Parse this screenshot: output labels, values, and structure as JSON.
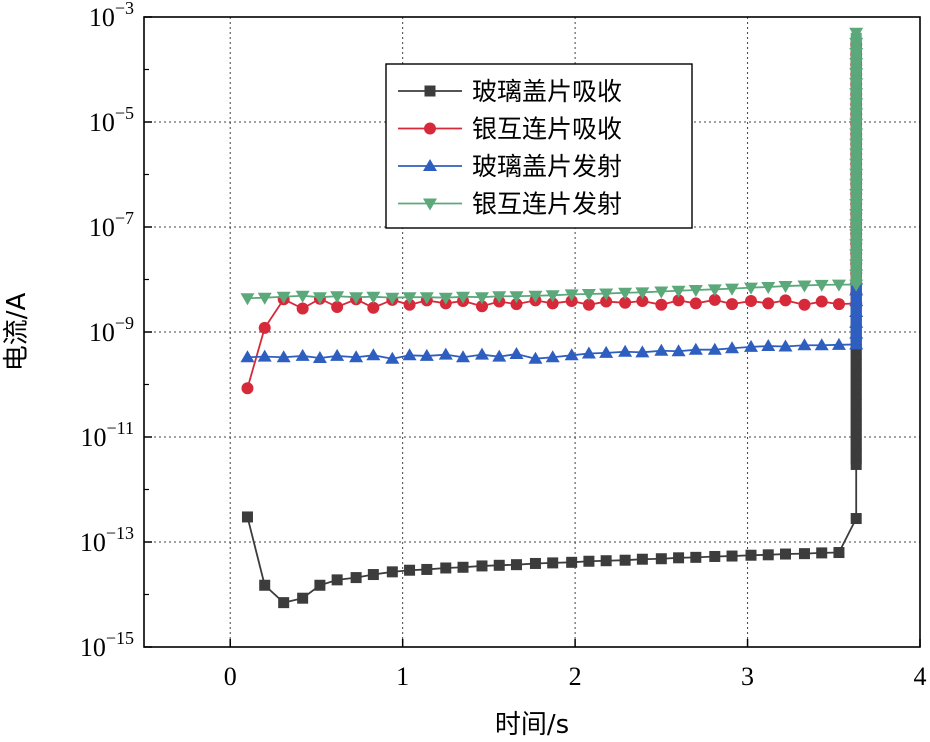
{
  "chart_data": {
    "type": "line",
    "title": "",
    "xlabel": "时间/s",
    "ylabel": "电流/A",
    "xlim": [
      -0.5,
      4
    ],
    "ylim_log10": [
      -15,
      -3
    ],
    "yscale": "log",
    "grid": true,
    "legend_position": "top-center",
    "x_ticks": [
      0,
      1,
      2,
      3,
      4
    ],
    "x_tick_labels": [
      "0",
      "1",
      "2",
      "3",
      "4"
    ],
    "y_tick_exponents": [
      -15,
      -13,
      -11,
      -9,
      -7,
      -5,
      -3
    ],
    "y_tick_base": "10",
    "y_tick_exps": [
      "−15",
      "−13",
      "−11",
      "−9",
      "−7",
      "−5",
      "−3"
    ],
    "series": [
      {
        "name": "玻璃盖片吸收",
        "color": "#3c3c3c",
        "marker": "square",
        "points": [
          [
            0.1,
            3e-13
          ],
          [
            0.2,
            1.5e-14
          ],
          [
            0.31,
            7e-15
          ],
          [
            0.42,
            8.5e-15
          ],
          [
            0.52,
            1.5e-14
          ],
          [
            0.62,
            1.9e-14
          ],
          [
            0.73,
            2.1e-14
          ],
          [
            0.83,
            2.4e-14
          ],
          [
            0.94,
            2.7e-14
          ],
          [
            1.04,
            2.9e-14
          ],
          [
            1.14,
            3e-14
          ],
          [
            1.25,
            3.2e-14
          ],
          [
            1.35,
            3.3e-14
          ],
          [
            1.46,
            3.5e-14
          ],
          [
            1.56,
            3.6e-14
          ],
          [
            1.66,
            3.7e-14
          ],
          [
            1.77,
            3.9e-14
          ],
          [
            1.87,
            4e-14
          ],
          [
            1.98,
            4.1e-14
          ],
          [
            2.08,
            4.3e-14
          ],
          [
            2.18,
            4.4e-14
          ],
          [
            2.29,
            4.5e-14
          ],
          [
            2.39,
            4.7e-14
          ],
          [
            2.5,
            4.8e-14
          ],
          [
            2.6,
            5e-14
          ],
          [
            2.7,
            5.1e-14
          ],
          [
            2.81,
            5.3e-14
          ],
          [
            2.91,
            5.4e-14
          ],
          [
            3.02,
            5.6e-14
          ],
          [
            3.12,
            5.7e-14
          ],
          [
            3.22,
            5.9e-14
          ],
          [
            3.33,
            6e-14
          ],
          [
            3.43,
            6.2e-14
          ],
          [
            3.53,
            6.3e-14
          ],
          [
            3.63,
            2.8e-13
          ]
        ],
        "spike": {
          "x": 3.63,
          "from": 3e-12,
          "to": 0.0003
        }
      },
      {
        "name": "银互连片吸收",
        "color": "#d62a3a",
        "marker": "circle",
        "points": [
          [
            0.1,
            8.5e-11
          ],
          [
            0.2,
            1.2e-09
          ],
          [
            0.31,
            4.2e-09
          ],
          [
            0.42,
            2.8e-09
          ],
          [
            0.52,
            4.3e-09
          ],
          [
            0.62,
            3e-09
          ],
          [
            0.73,
            4.2e-09
          ],
          [
            0.83,
            2.9e-09
          ],
          [
            0.94,
            4.1e-09
          ],
          [
            1.04,
            3.3e-09
          ],
          [
            1.14,
            4e-09
          ],
          [
            1.25,
            3.5e-09
          ],
          [
            1.35,
            3.9e-09
          ],
          [
            1.46,
            3.1e-09
          ],
          [
            1.56,
            3.8e-09
          ],
          [
            1.66,
            3.4e-09
          ],
          [
            1.77,
            4e-09
          ],
          [
            1.87,
            3.5e-09
          ],
          [
            1.98,
            3.9e-09
          ],
          [
            2.08,
            3.3e-09
          ],
          [
            2.18,
            3.8e-09
          ],
          [
            2.29,
            3.6e-09
          ],
          [
            2.39,
            3.9e-09
          ],
          [
            2.5,
            3.3e-09
          ],
          [
            2.6,
            4e-09
          ],
          [
            2.7,
            3.5e-09
          ],
          [
            2.81,
            4.1e-09
          ],
          [
            2.91,
            3.4e-09
          ],
          [
            3.02,
            3.9e-09
          ],
          [
            3.12,
            3.5e-09
          ],
          [
            3.22,
            4e-09
          ],
          [
            3.33,
            3.3e-09
          ],
          [
            3.43,
            3.8e-09
          ],
          [
            3.53,
            3.4e-09
          ]
        ],
        "spike": {
          "x": 3.63,
          "from": 3.5e-09,
          "to": 0.0003
        }
      },
      {
        "name": "玻璃盖片发射",
        "color": "#2e5fc0",
        "marker": "triangle-up",
        "points": [
          [
            0.1,
            3.3e-10
          ],
          [
            0.2,
            3.4e-10
          ],
          [
            0.31,
            3.3e-10
          ],
          [
            0.42,
            3.5e-10
          ],
          [
            0.52,
            3.2e-10
          ],
          [
            0.62,
            3.5e-10
          ],
          [
            0.73,
            3.3e-10
          ],
          [
            0.83,
            3.6e-10
          ],
          [
            0.94,
            3.1e-10
          ],
          [
            1.04,
            3.6e-10
          ],
          [
            1.14,
            3.5e-10
          ],
          [
            1.25,
            3.7e-10
          ],
          [
            1.35,
            3.3e-10
          ],
          [
            1.46,
            3.7e-10
          ],
          [
            1.56,
            3.4e-10
          ],
          [
            1.66,
            3.8e-10
          ],
          [
            1.77,
            3.1e-10
          ],
          [
            1.87,
            3.3e-10
          ],
          [
            1.98,
            3.6e-10
          ],
          [
            2.08,
            3.9e-10
          ],
          [
            2.18,
            4e-10
          ],
          [
            2.29,
            4.2e-10
          ],
          [
            2.39,
            4.1e-10
          ],
          [
            2.5,
            4.4e-10
          ],
          [
            2.6,
            4.3e-10
          ],
          [
            2.7,
            4.6e-10
          ],
          [
            2.81,
            4.6e-10
          ],
          [
            2.91,
            4.9e-10
          ],
          [
            3.02,
            5.2e-10
          ],
          [
            3.12,
            5.4e-10
          ],
          [
            3.22,
            5.3e-10
          ],
          [
            3.33,
            5.6e-10
          ],
          [
            3.43,
            5.6e-10
          ],
          [
            3.53,
            5.7e-10
          ]
        ],
        "spike": {
          "x": 3.63,
          "from": 5.8e-10,
          "to": 1e-08
        }
      },
      {
        "name": "银互连片发射",
        "color": "#5ba87a",
        "marker": "triangle-down",
        "points": [
          [
            0.1,
            4.4e-09
          ],
          [
            0.2,
            4.5e-09
          ],
          [
            0.31,
            4.7e-09
          ],
          [
            0.42,
            4.9e-09
          ],
          [
            0.52,
            4.6e-09
          ],
          [
            0.62,
            4.8e-09
          ],
          [
            0.73,
            4.6e-09
          ],
          [
            0.83,
            4.7e-09
          ],
          [
            0.94,
            4.5e-09
          ],
          [
            1.04,
            4.6e-09
          ],
          [
            1.14,
            4.6e-09
          ],
          [
            1.25,
            4.5e-09
          ],
          [
            1.35,
            4.7e-09
          ],
          [
            1.46,
            4.6e-09
          ],
          [
            1.56,
            4.8e-09
          ],
          [
            1.66,
            4.8e-09
          ],
          [
            1.77,
            4.9e-09
          ],
          [
            1.87,
            5e-09
          ],
          [
            1.98,
            5.2e-09
          ],
          [
            2.08,
            5.3e-09
          ],
          [
            2.18,
            5.4e-09
          ],
          [
            2.29,
            5.6e-09
          ],
          [
            2.39,
            5.7e-09
          ],
          [
            2.5,
            5.9e-09
          ],
          [
            2.6,
            6.1e-09
          ],
          [
            2.7,
            6.3e-09
          ],
          [
            2.81,
            6.5e-09
          ],
          [
            2.91,
            6.7e-09
          ],
          [
            3.02,
            7e-09
          ],
          [
            3.12,
            7.2e-09
          ],
          [
            3.22,
            7.5e-09
          ],
          [
            3.33,
            7.7e-09
          ],
          [
            3.43,
            7.9e-09
          ],
          [
            3.53,
            8e-09
          ]
        ],
        "spike": {
          "x": 3.63,
          "from": 8e-09,
          "to": 0.0005
        }
      }
    ]
  }
}
